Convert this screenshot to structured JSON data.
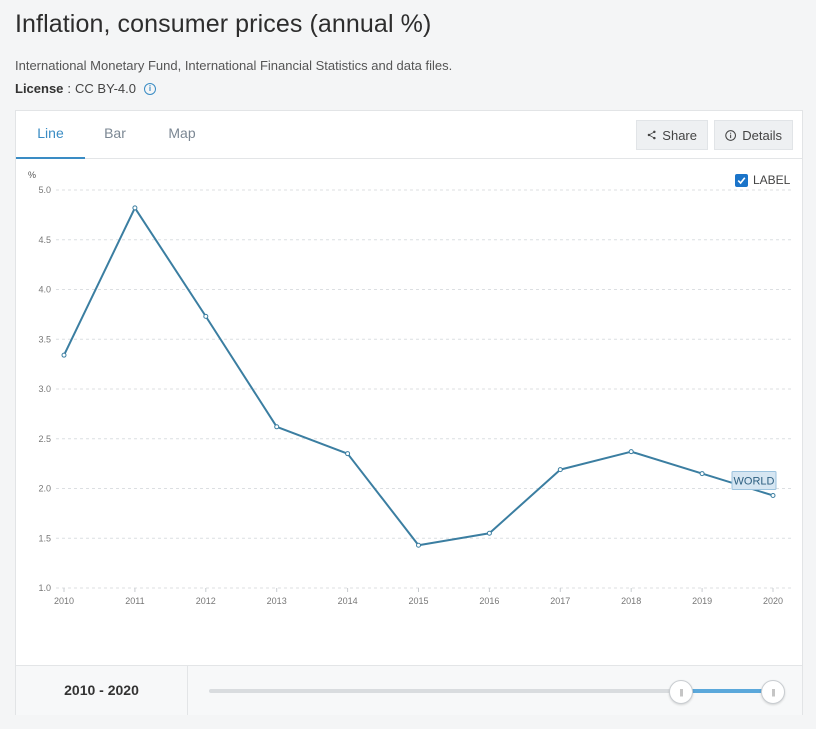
{
  "page": {
    "title": "Inflation, consumer prices (annual %)",
    "source": "International Monetary Fund, International Financial Statistics and data files.",
    "license_label": "License",
    "license_sep": ":",
    "license_value": "CC BY-4.0"
  },
  "tabs": [
    {
      "label": "Line",
      "active": true
    },
    {
      "label": "Bar",
      "active": false
    },
    {
      "label": "Map",
      "active": false
    }
  ],
  "toolbar": {
    "share_label": "Share",
    "details_label": "Details"
  },
  "label_toggle": {
    "label": "LABEL",
    "checked": true
  },
  "range": {
    "label": "2010 - 2020",
    "start": 2010,
    "end": 2020,
    "min": 1960,
    "max": 2020
  },
  "colors": {
    "line": "#3b7ea1",
    "accent": "#3a8cc4",
    "series_label_bg": "#d6e6f2"
  },
  "chart_data": {
    "type": "line",
    "ylabel": "%",
    "ylim": [
      1.0,
      5.0
    ],
    "yticks": [
      "5.0",
      "4.5",
      "4.0",
      "3.5",
      "3.0",
      "2.5",
      "2.0",
      "1.5",
      "1.0"
    ],
    "x": [
      "2010",
      "2011",
      "2012",
      "2013",
      "2014",
      "2015",
      "2016",
      "2017",
      "2018",
      "2019",
      "2020"
    ],
    "series": [
      {
        "name": "WORLD",
        "values": [
          3.34,
          4.82,
          3.73,
          2.62,
          2.35,
          1.43,
          1.55,
          2.19,
          2.37,
          2.15,
          1.93
        ]
      }
    ],
    "grid": true
  }
}
